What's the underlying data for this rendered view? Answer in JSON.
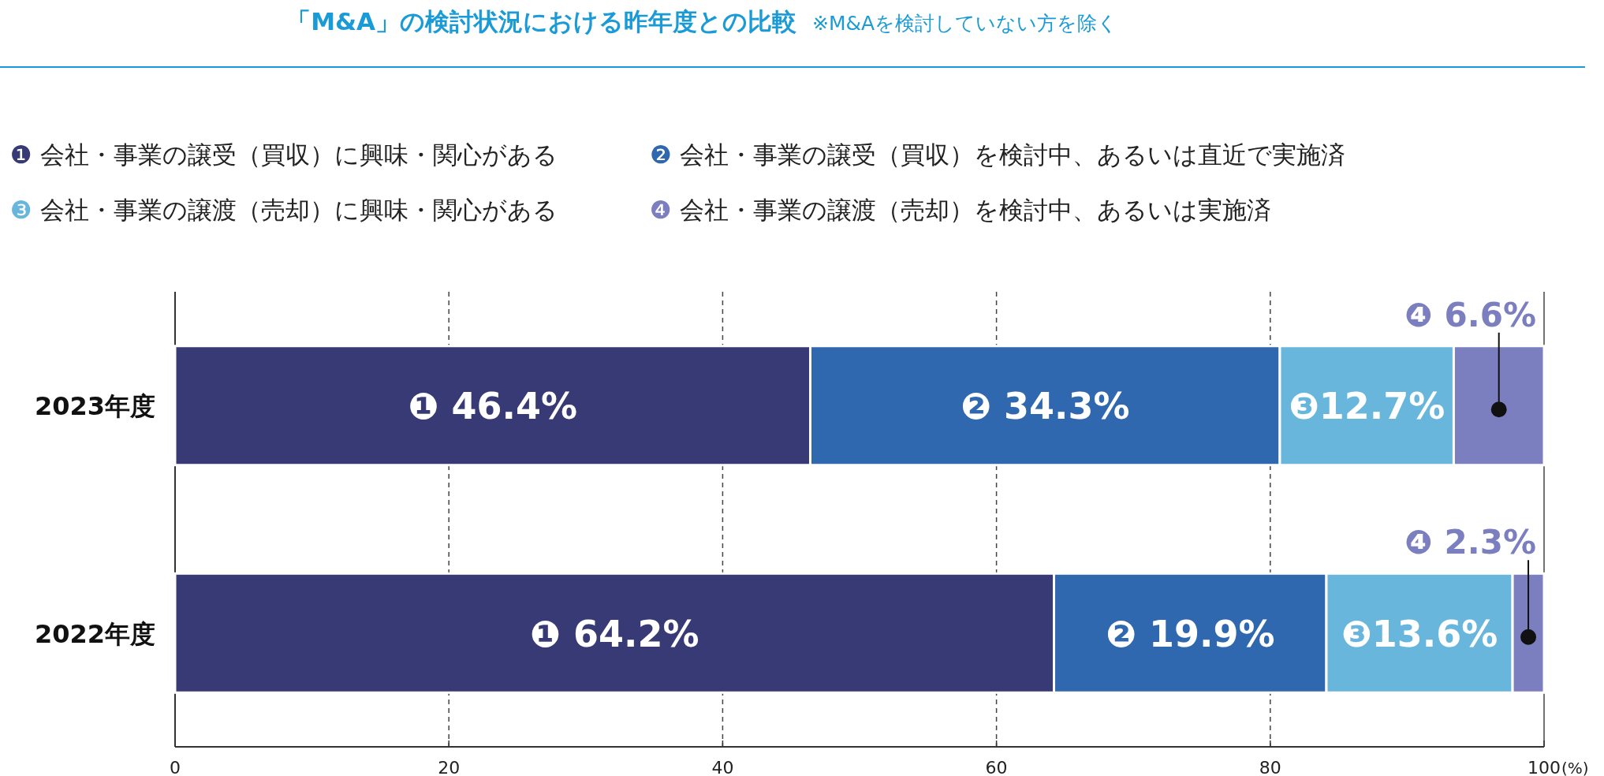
{
  "chart_data": {
    "type": "bar",
    "orientation": "horizontal",
    "stacked": true,
    "title": "「M&A」の検討状況における昨年度との比較",
    "subtitle": "※M&Aを検討していない方を除く",
    "categories": [
      "2023年度",
      "2022年度"
    ],
    "series": [
      {
        "name": "❶ 会社・事業の譲受（買収）に興味・関心がある",
        "color": "#373a75",
        "values": [
          46.4,
          64.2
        ],
        "value_labels": [
          "❶ 46.4%",
          "❶ 64.2%"
        ]
      },
      {
        "name": "❷ 会社・事業の譲受（買収）を検討中、あるいは直近で実施済",
        "color": "#3068b0",
        "values": [
          34.3,
          19.9
        ],
        "value_labels": [
          "❷ 34.3%",
          "❷ 19.9%"
        ]
      },
      {
        "name": "❸ 会社・事業の譲渡（売却）に興味・関心がある",
        "color": "#69b6dd",
        "values": [
          12.7,
          13.6
        ],
        "value_labels": [
          "❸12.7%",
          "❸13.6%"
        ]
      },
      {
        "name": "❹ 会社・事業の譲渡（売却）を検討中、あるいは実施済",
        "color": "#7b7fbf",
        "values": [
          6.6,
          2.3
        ],
        "value_labels": [
          "❹ 6.6%",
          "❹ 2.3%"
        ]
      }
    ],
    "xlim": [
      0,
      100
    ],
    "xticks": [
      0,
      20,
      40,
      60,
      80,
      100
    ],
    "xlabel": "(%)",
    "grid": "x",
    "legend": "top"
  }
}
